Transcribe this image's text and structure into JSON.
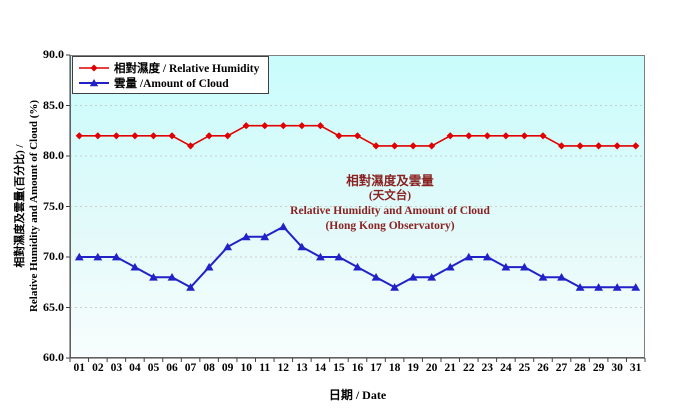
{
  "chart_data": {
    "type": "line",
    "x_categories": [
      "01",
      "02",
      "03",
      "04",
      "05",
      "06",
      "07",
      "08",
      "09",
      "10",
      "11",
      "12",
      "13",
      "14",
      "15",
      "16",
      "17",
      "18",
      "19",
      "20",
      "21",
      "22",
      "23",
      "24",
      "25",
      "26",
      "27",
      "28",
      "29",
      "30",
      "31"
    ],
    "series": [
      {
        "name": "相對濕度 / Relative Humidity",
        "marker": "diamond",
        "color": "#e00000",
        "values": [
          82,
          82,
          82,
          82,
          82,
          82,
          81,
          82,
          82,
          83,
          83,
          83,
          83,
          83,
          82,
          82,
          81,
          81,
          81,
          81,
          82,
          82,
          82,
          82,
          82,
          82,
          81,
          81,
          81,
          81,
          81
        ]
      },
      {
        "name": "雲量 /Amount of Cloud",
        "marker": "triangle",
        "color": "#2121c8",
        "values": [
          70,
          70,
          70,
          69,
          68,
          68,
          67,
          69,
          71,
          72,
          72,
          73,
          71,
          70,
          70,
          69,
          68,
          67,
          68,
          68,
          69,
          70,
          70,
          69,
          69,
          68,
          68,
          67,
          67,
          67,
          67
        ]
      }
    ],
    "annotation": {
      "line1": "相對濕度及雲量",
      "line2": "(天文台)",
      "line3": "Relative Humidity and Amount of Cloud",
      "line4": "(Hong Kong Observatory)",
      "color": "#8b2222"
    },
    "xlabel": "日期 / Date",
    "ylabel_line1": "相對濕度及雲量(百分比) /",
    "ylabel_line2": "Relative Humidity and Amount of Cloud (%)",
    "ylim": [
      60,
      90
    ],
    "ytick_step": 5,
    "ytick_labels": [
      "90.0",
      "85.0",
      "80.0",
      "75.0",
      "70.0",
      "65.0",
      "60.0"
    ],
    "grid": "horizontal-dashed",
    "legend_position": "top-left",
    "plot_bg_top": "#c9fcfc",
    "plot_bg_bottom": "#f8fdfd",
    "gridline_color": "#c9c9c9",
    "axis_color": "#404040"
  }
}
